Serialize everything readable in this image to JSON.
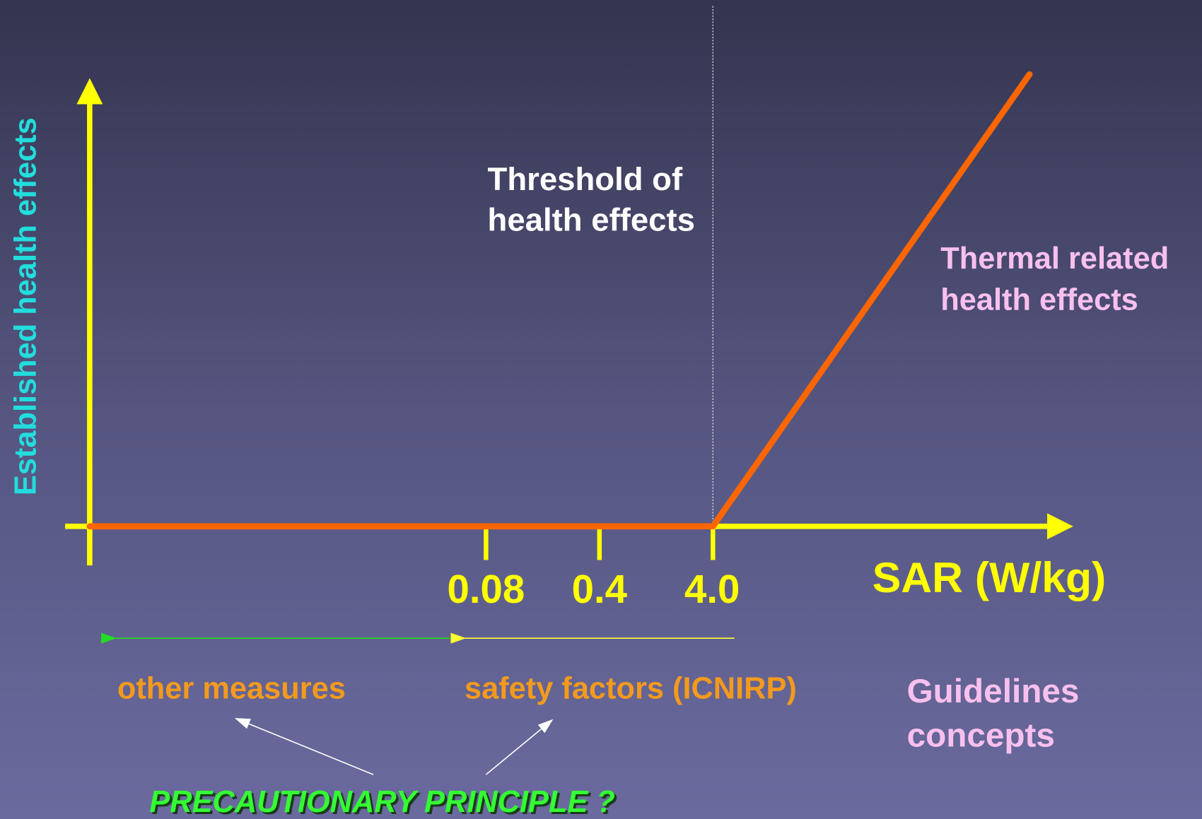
{
  "y_axis_label": "Established health effects",
  "x_axis_label": "SAR (W/kg)",
  "ticks": [
    "0.08",
    "0.4",
    "4.0"
  ],
  "threshold_label": [
    "Threshold of",
    "health effects"
  ],
  "curve_label": [
    "Thermal related",
    "health effects"
  ],
  "ranges": [
    "other  measures",
    "safety factors (ICNIRP)"
  ],
  "side_label": [
    "Guidelines",
    "concepts"
  ],
  "footer": "PRECAUTIONARY PRINCIPLE  ?"
}
